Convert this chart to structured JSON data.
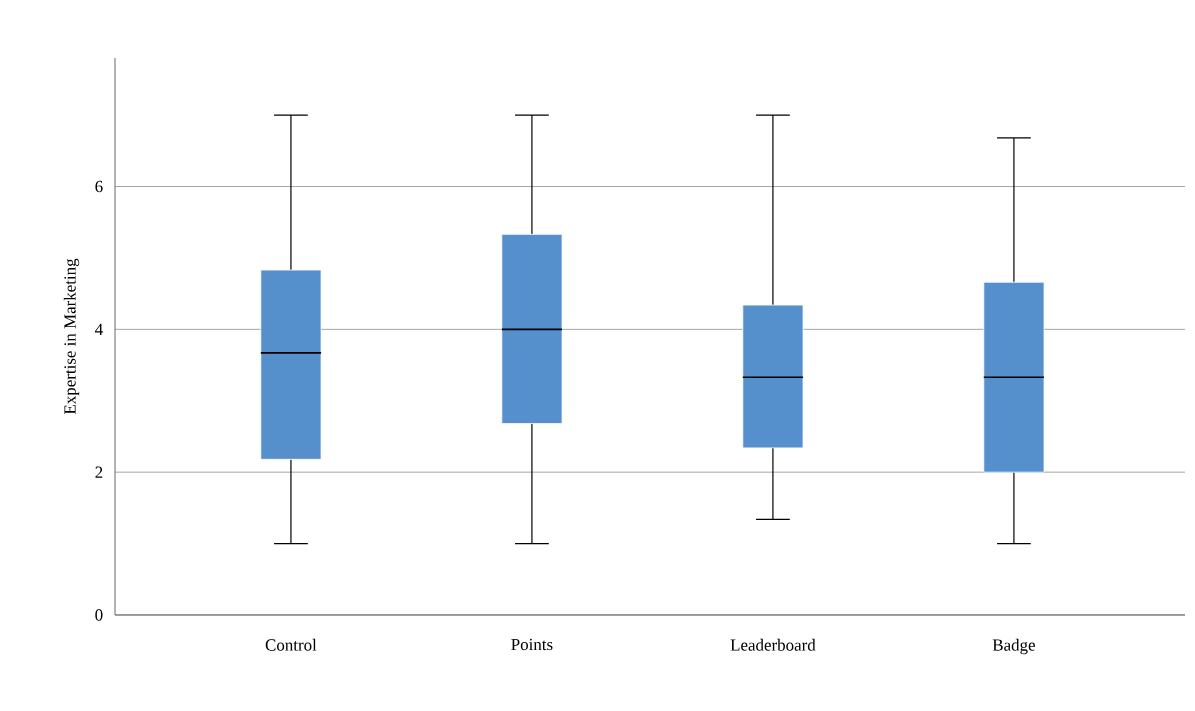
{
  "chart_data": {
    "type": "box",
    "ylabel": "Expertise in Marketing",
    "categories": [
      "Control",
      "Points",
      "Leaderboard",
      "Badge"
    ],
    "series": [
      {
        "color": "#5590cc",
        "boxes": [
          {
            "low": 1,
            "q1": 2.18,
            "median": 3.67,
            "q3": 4.83,
            "high": 7
          },
          {
            "low": 1,
            "q1": 2.68,
            "median": 4,
            "q3": 5.33,
            "high": 7
          },
          {
            "low": 1.34,
            "q1": 2.34,
            "median": 3.33,
            "q3": 4.34,
            "high": 7
          },
          {
            "low": 1,
            "q1": 2,
            "median": 3.33,
            "q3": 4.66,
            "high": 6.68
          }
        ]
      }
    ],
    "ylim": [
      0,
      7.8
    ],
    "yticks": [
      0,
      2,
      4,
      6
    ],
    "grid": "y"
  }
}
